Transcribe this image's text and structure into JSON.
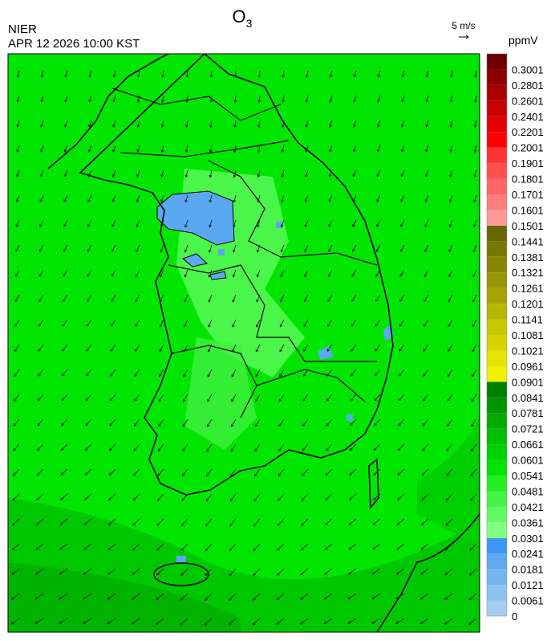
{
  "header": {
    "title": {
      "symbol": "O",
      "subscript": "3"
    },
    "agency": "NIER",
    "datetime": "APR 12 2026 10:00 KST",
    "wind_scale": "5 m/s"
  },
  "colorbar": {
    "unit": "ppmV",
    "levels": [
      0,
      0.0061,
      0.0121,
      0.0181,
      0.0241,
      0.0301,
      0.0361,
      0.0421,
      0.0481,
      0.0541,
      0.0601,
      0.0661,
      0.0721,
      0.0781,
      0.0841,
      0.0901,
      0.0961,
      0.1021,
      0.1081,
      0.1141,
      0.1201,
      0.1261,
      0.1321,
      0.1381,
      0.1441,
      0.1501,
      0.1601,
      0.1701,
      0.1801,
      0.1901,
      0.2001,
      0.2201,
      0.2401,
      0.2601,
      0.2801,
      0.3001
    ],
    "colors": [
      "#a4cdee",
      "#8cc2f0",
      "#74b5f0",
      "#5ea9f0",
      "#3c98f4",
      "#80ff80",
      "#62fa62",
      "#44f444",
      "#22ee22",
      "#00e400",
      "#00d200",
      "#00be00",
      "#00aa00",
      "#009400",
      "#007e00",
      "#f0f000",
      "#e4e400",
      "#d4d400",
      "#c8c800",
      "#b6b600",
      "#a4a400",
      "#969600",
      "#868600",
      "#787800",
      "#666600",
      "#ff9a9a",
      "#ff7e7e",
      "#ff6666",
      "#ff5050",
      "#ff3434",
      "#ff0000",
      "#e40000",
      "#c80000",
      "#aa0000",
      "#8c0000",
      "#6c0000"
    ]
  }
}
